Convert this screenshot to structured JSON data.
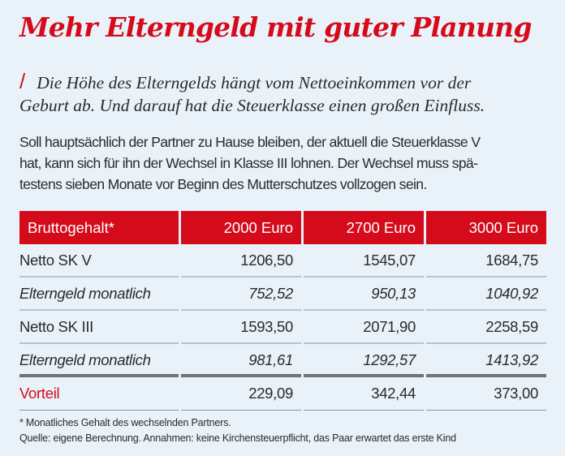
{
  "title": "Mehr Elterngeld mit guter Planung",
  "lead": {
    "slash": "/",
    "text_line1": "Die Höhe des Elterngelds hängt vom Nettoeinkommen vor der",
    "text_line2": "Geburt ab. Und darauf hat die Steuerklasse einen großen Einfluss."
  },
  "body": {
    "lines": [
      "Soll hauptsächlich der Partner zu Hause bleiben, der aktuell die Steuerklasse V",
      "hat, kann sich für ihn der Wechsel in Klasse III lohnen. Der Wechsel muss spä-",
      "testens sieben Monate vor Beginn des Mutterschutzes vollzogen sein."
    ]
  },
  "table": {
    "headers": [
      "Bruttogehalt*",
      "2000 Euro",
      "2700 Euro",
      "3000 Euro"
    ],
    "rows": [
      {
        "label": "Netto SK V",
        "values": [
          "1206,50",
          "1545,07",
          "1684,75"
        ]
      },
      {
        "label": "Elterngeld monatlich",
        "values": [
          "752,52",
          "950,13",
          "1040,92"
        ]
      },
      {
        "label": "Netto SK III",
        "values": [
          "1593,50",
          "2071,90",
          "2258,59"
        ]
      },
      {
        "label": "Elterngeld monatlich",
        "values": [
          "981,61",
          "1292,57",
          "1413,92"
        ]
      },
      {
        "label": "Vorteil",
        "values": [
          "229,09",
          "342,44",
          "373,00"
        ]
      }
    ]
  },
  "footnotes": [
    "* Monatliches Gehalt des wechselnden Partners.",
    "Quelle: eigene Berechnung. Annahmen: keine Kirchensteuerpflicht, das Paar erwartet das erste Kind"
  ],
  "colors": {
    "accent": "#d50b1c",
    "background": "#e9f2f9",
    "text": "#2a2a2a"
  }
}
